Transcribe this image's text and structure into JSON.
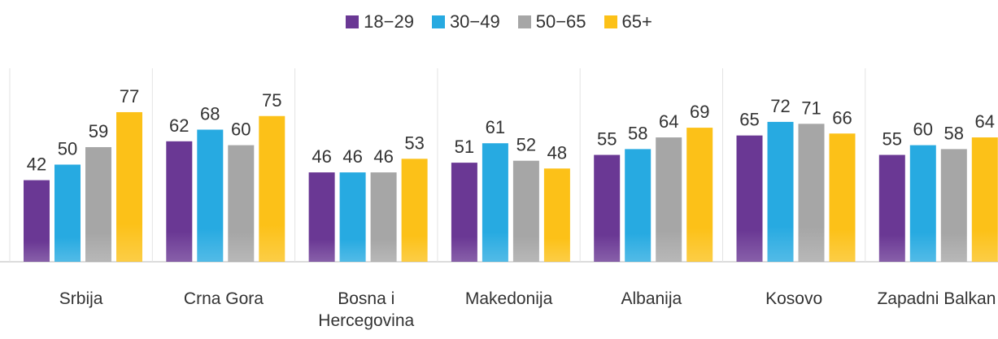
{
  "chart_data": {
    "type": "bar",
    "categories": [
      "Srbija",
      "Crna Gora",
      "Bosna i Hercegovina",
      "Makedonija",
      "Albanija",
      "Kosovo",
      "Zapadni Balkan"
    ],
    "series": [
      {
        "name": "18−29",
        "color": "#6a3894",
        "values": [
          42,
          62,
          46,
          51,
          55,
          65,
          55
        ]
      },
      {
        "name": "30−49",
        "color": "#27aae1",
        "values": [
          50,
          68,
          46,
          61,
          58,
          72,
          60
        ]
      },
      {
        "name": "50−65",
        "color": "#a6a6a6",
        "values": [
          59,
          60,
          46,
          52,
          64,
          71,
          58
        ]
      },
      {
        "name": "65+",
        "color": "#fcc118",
        "values": [
          77,
          75,
          53,
          48,
          69,
          66,
          64
        ]
      }
    ],
    "legend": "top"
  }
}
